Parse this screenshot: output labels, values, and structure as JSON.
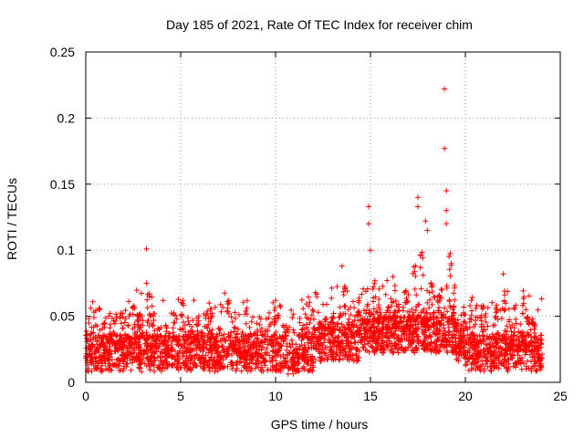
{
  "chart_data": {
    "type": "scatter",
    "title": "Day 185 of 2021, Rate Of TEC Index for receiver chim",
    "xlabel": "GPS time / hours",
    "ylabel": "ROTI / TECUs",
    "xlim": [
      0,
      25
    ],
    "ylim": [
      0,
      0.25
    ],
    "xticks": [
      0,
      5,
      10,
      15,
      20,
      25
    ],
    "xtick_labels": [
      "0",
      "5",
      "10",
      "15",
      "20",
      "25"
    ],
    "yticks": [
      0,
      0.05,
      0.1,
      0.15,
      0.2,
      0.25
    ],
    "ytick_labels": [
      "0",
      "0.05",
      "0.1",
      "0.15",
      "0.2",
      "0.25"
    ],
    "grid": true,
    "marker": "+",
    "color": "#ff0000",
    "series": [
      {
        "name": "ROTI",
        "note": "dense band of points between roughly 0.01 and 0.04 TECU/s across 0-24 h; notable outliers listed",
        "outliers": [
          {
            "x": 3.2,
            "y": 0.101
          },
          {
            "x": 3.2,
            "y": 0.075
          },
          {
            "x": 14.9,
            "y": 0.133
          },
          {
            "x": 14.9,
            "y": 0.12
          },
          {
            "x": 15.0,
            "y": 0.1
          },
          {
            "x": 17.5,
            "y": 0.14
          },
          {
            "x": 17.5,
            "y": 0.133
          },
          {
            "x": 17.9,
            "y": 0.122
          },
          {
            "x": 18.0,
            "y": 0.115
          },
          {
            "x": 18.9,
            "y": 0.222
          },
          {
            "x": 18.9,
            "y": 0.177
          },
          {
            "x": 19.0,
            "y": 0.145
          },
          {
            "x": 19.0,
            "y": 0.13
          },
          {
            "x": 19.0,
            "y": 0.12
          },
          {
            "x": 13.5,
            "y": 0.088
          },
          {
            "x": 22.0,
            "y": 0.082
          },
          {
            "x": 6.5,
            "y": 0.06
          },
          {
            "x": 10.0,
            "y": 0.062
          }
        ]
      }
    ]
  }
}
